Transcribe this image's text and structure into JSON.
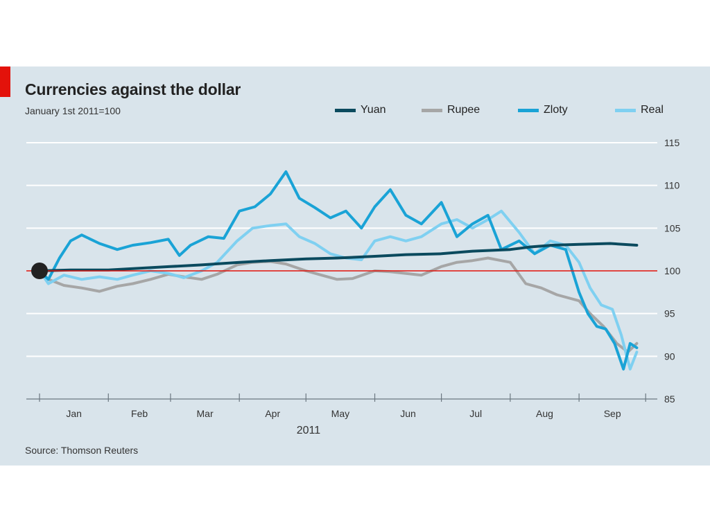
{
  "chart_data": {
    "type": "line",
    "title": "Currencies against the dollar",
    "subtitle": "January 1st 2011=100",
    "source": "Source: Thomson Reuters",
    "xlabel": "2011",
    "ylabel": "",
    "ylim": [
      85,
      115
    ],
    "yticks": [
      85,
      90,
      95,
      100,
      105,
      110,
      115
    ],
    "month_labels": [
      "Jan",
      "Feb",
      "Mar",
      "Apr",
      "May",
      "Jun",
      "Jul",
      "Aug",
      "Sep"
    ],
    "baseline": 100,
    "grid": true,
    "legend_position": "top-right",
    "colors": {
      "accent": "#e3120b",
      "baseline": "#e3120b",
      "panel": "#d9e4eb",
      "marker": "#222222"
    },
    "series": [
      {
        "name": "Yuan",
        "color": "#0b4a5e",
        "x": [
          "2011-01-01",
          "2011-01-15",
          "2011-02-01",
          "2011-02-15",
          "2011-03-01",
          "2011-03-15",
          "2011-04-01",
          "2011-04-15",
          "2011-05-01",
          "2011-05-15",
          "2011-06-01",
          "2011-06-15",
          "2011-07-01",
          "2011-07-15",
          "2011-08-01",
          "2011-08-10",
          "2011-08-20",
          "2011-09-01",
          "2011-09-15",
          "2011-09-27"
        ],
        "values": [
          100,
          100.1,
          100.1,
          100.3,
          100.5,
          100.7,
          101,
          101.2,
          101.4,
          101.5,
          101.7,
          101.9,
          102,
          102.3,
          102.5,
          102.8,
          103,
          103.1,
          103.2,
          103
        ]
      },
      {
        "name": "Rupee",
        "color": "#a6a6a6",
        "x": [
          "2011-01-01",
          "2011-01-05",
          "2011-01-12",
          "2011-01-20",
          "2011-01-28",
          "2011-02-05",
          "2011-02-12",
          "2011-02-20",
          "2011-02-28",
          "2011-03-07",
          "2011-03-15",
          "2011-03-22",
          "2011-03-31",
          "2011-04-07",
          "2011-04-15",
          "2011-04-22",
          "2011-05-01",
          "2011-05-08",
          "2011-05-15",
          "2011-05-22",
          "2011-06-01",
          "2011-06-08",
          "2011-06-15",
          "2011-06-22",
          "2011-07-01",
          "2011-07-08",
          "2011-07-15",
          "2011-07-22",
          "2011-08-01",
          "2011-08-08",
          "2011-08-15",
          "2011-08-22",
          "2011-09-01",
          "2011-09-06",
          "2011-09-12",
          "2011-09-18",
          "2011-09-23",
          "2011-09-27"
        ],
        "values": [
          100,
          99,
          98.3,
          98,
          97.6,
          98.2,
          98.5,
          99,
          99.6,
          99.3,
          99,
          99.6,
          100.7,
          101,
          101.1,
          100.8,
          100,
          99.5,
          99,
          99.1,
          100,
          99.9,
          99.7,
          99.5,
          100.5,
          101,
          101.2,
          101.5,
          101,
          98.5,
          98,
          97.2,
          96.5,
          95,
          93.5,
          91.5,
          90.5,
          91.5
        ]
      },
      {
        "name": "Zloty",
        "color": "#1aa3d6",
        "x": [
          "2011-01-01",
          "2011-01-05",
          "2011-01-10",
          "2011-01-15",
          "2011-01-20",
          "2011-01-28",
          "2011-02-05",
          "2011-02-12",
          "2011-02-20",
          "2011-02-28",
          "2011-03-05",
          "2011-03-10",
          "2011-03-18",
          "2011-03-25",
          "2011-04-01",
          "2011-04-08",
          "2011-04-15",
          "2011-04-22",
          "2011-04-28",
          "2011-05-05",
          "2011-05-12",
          "2011-05-19",
          "2011-05-26",
          "2011-06-01",
          "2011-06-08",
          "2011-06-15",
          "2011-06-22",
          "2011-07-01",
          "2011-07-08",
          "2011-07-15",
          "2011-07-22",
          "2011-07-28",
          "2011-08-05",
          "2011-08-12",
          "2011-08-19",
          "2011-08-26",
          "2011-09-01",
          "2011-09-05",
          "2011-09-09",
          "2011-09-13",
          "2011-09-17",
          "2011-09-21",
          "2011-09-24",
          "2011-09-27"
        ],
        "values": [
          100,
          99,
          101.5,
          103.5,
          104.2,
          103.2,
          102.5,
          103,
          103.3,
          103.7,
          101.8,
          103,
          104,
          103.8,
          107,
          107.5,
          109,
          111.6,
          108.5,
          107.4,
          106.2,
          107,
          105,
          107.5,
          109.5,
          106.5,
          105.5,
          108,
          104,
          105.5,
          106.5,
          102.5,
          103.5,
          102,
          103,
          102.5,
          97.5,
          95,
          93.5,
          93.2,
          91.5,
          88.5,
          91.5,
          91
        ]
      },
      {
        "name": "Real",
        "color": "#7fd0f1",
        "x": [
          "2011-01-01",
          "2011-01-05",
          "2011-01-12",
          "2011-01-20",
          "2011-01-28",
          "2011-02-05",
          "2011-02-12",
          "2011-02-20",
          "2011-02-28",
          "2011-03-07",
          "2011-03-15",
          "2011-03-22",
          "2011-03-31",
          "2011-04-07",
          "2011-04-15",
          "2011-04-22",
          "2011-04-28",
          "2011-05-05",
          "2011-05-12",
          "2011-05-19",
          "2011-05-26",
          "2011-06-01",
          "2011-06-08",
          "2011-06-15",
          "2011-06-22",
          "2011-07-01",
          "2011-07-08",
          "2011-07-15",
          "2011-07-22",
          "2011-07-28",
          "2011-08-05",
          "2011-08-12",
          "2011-08-19",
          "2011-08-26",
          "2011-09-01",
          "2011-09-06",
          "2011-09-11",
          "2011-09-16",
          "2011-09-20",
          "2011-09-24",
          "2011-09-27"
        ],
        "values": [
          100,
          98.5,
          99.5,
          99,
          99.3,
          99,
          99.5,
          100,
          99.7,
          99.2,
          100,
          101,
          103.5,
          105,
          105.3,
          105.5,
          104,
          103.2,
          102,
          101.5,
          101.3,
          103.5,
          104,
          103.5,
          104,
          105.5,
          106,
          105,
          106,
          107,
          104.5,
          102,
          103.5,
          103,
          101,
          98,
          96,
          95.5,
          92.5,
          88.5,
          90.5
        ]
      }
    ]
  }
}
